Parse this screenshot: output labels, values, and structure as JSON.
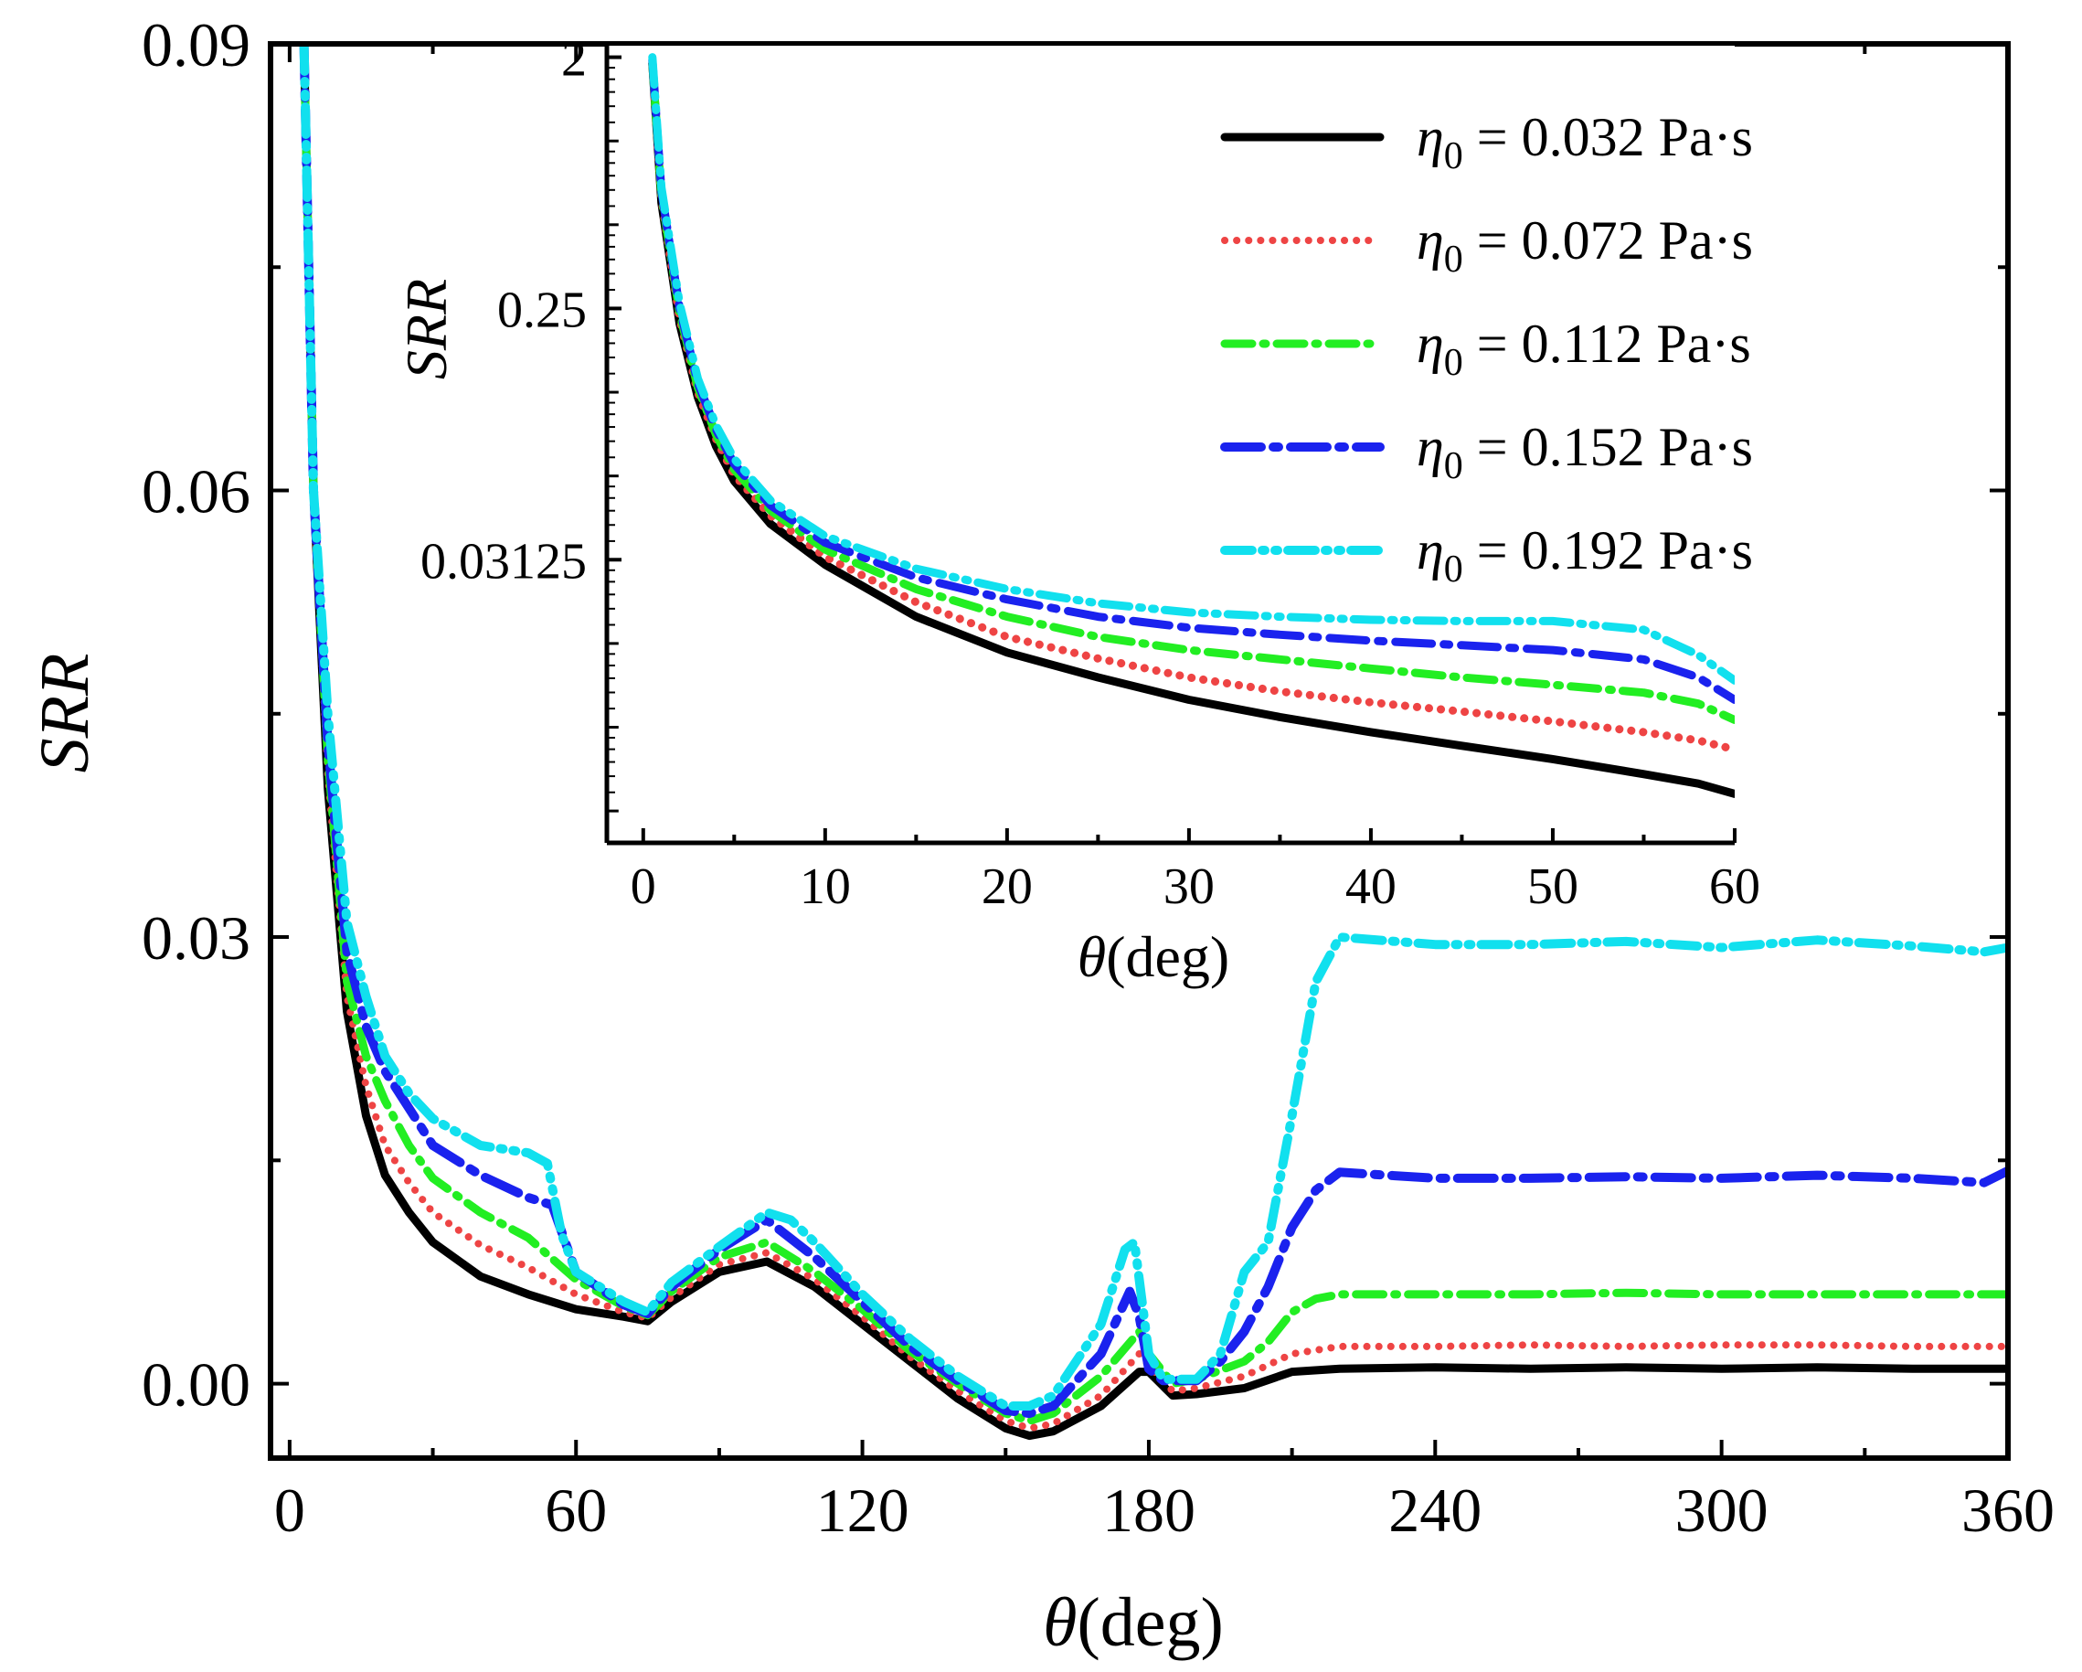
{
  "chart_data": [
    {
      "type": "line",
      "name": "main",
      "xlabel_symbol": "θ",
      "xlabel_unit": "(deg)",
      "ylabel": "SRR",
      "xlim": [
        -4,
        360
      ],
      "ylim": [
        -0.005,
        0.09
      ],
      "xticks": [
        0,
        60,
        120,
        180,
        240,
        300,
        360
      ],
      "xtick_labels": [
        "0",
        "60",
        "120",
        "180",
        "240",
        "300",
        "360"
      ],
      "yticks": [
        0.0,
        0.03,
        0.06,
        0.09
      ],
      "ytick_labels": [
        "0.00",
        "0.03",
        "0.06",
        "0.09"
      ],
      "legend": {
        "placement": "top-right",
        "entries": [
          {
            "symbol": "η",
            "sub": "0",
            "text": " = 0.032 Pa·s"
          },
          {
            "symbol": "η",
            "sub": "0",
            "text": " = 0.072 Pa·s"
          },
          {
            "symbol": "η",
            "sub": "0",
            "text": " = 0.112 Pa·s"
          },
          {
            "symbol": "η",
            "sub": "0",
            "text": " = 0.152 Pa·s"
          },
          {
            "symbol": "η",
            "sub": "0",
            "text": " = 0.192 Pa·s"
          }
        ]
      },
      "series": [
        {
          "name": "η0 = 0.032 Pa·s",
          "color": "#000000",
          "dash": "solid",
          "x": [
            3,
            5,
            8,
            12,
            16,
            20,
            25,
            30,
            40,
            50,
            60,
            70,
            75,
            80,
            90,
            100,
            110,
            120,
            130,
            140,
            150,
            155,
            160,
            170,
            178,
            180,
            185,
            190,
            200,
            210,
            220,
            240,
            260,
            280,
            300,
            320,
            340,
            360
          ],
          "y": [
            0.09,
            0.06,
            0.04,
            0.025,
            0.018,
            0.014,
            0.0115,
            0.0095,
            0.0072,
            0.006,
            0.005,
            0.0045,
            0.0042,
            0.0055,
            0.0075,
            0.0082,
            0.0065,
            0.004,
            0.0015,
            -0.001,
            -0.003,
            -0.0035,
            -0.0032,
            -0.0015,
            0.0008,
            0.0008,
            -0.0008,
            -0.0007,
            -0.0003,
            0.0008,
            0.001,
            0.0011,
            0.001,
            0.0011,
            0.001,
            0.0011,
            0.001,
            0.001
          ]
        },
        {
          "name": "η0 = 0.072 Pa·s",
          "color": "#ee4444",
          "dash": "dotted",
          "x": [
            3,
            5,
            8,
            12,
            16,
            20,
            25,
            30,
            40,
            50,
            60,
            70,
            75,
            80,
            90,
            100,
            110,
            120,
            130,
            140,
            150,
            155,
            160,
            170,
            178,
            180,
            185,
            190,
            200,
            210,
            220,
            240,
            260,
            280,
            300,
            320,
            340,
            360
          ],
          "y": [
            0.09,
            0.06,
            0.041,
            0.026,
            0.02,
            0.016,
            0.0135,
            0.0115,
            0.0093,
            0.0078,
            0.006,
            0.0048,
            0.0044,
            0.0058,
            0.008,
            0.0088,
            0.007,
            0.0045,
            0.0018,
            -0.0005,
            -0.0025,
            -0.003,
            -0.0027,
            -0.0008,
            0.002,
            0.0012,
            -0.0005,
            -0.0003,
            0.0005,
            0.002,
            0.0025,
            0.0025,
            0.0026,
            0.0025,
            0.0026,
            0.0026,
            0.0025,
            0.0025
          ]
        },
        {
          "name": "η0 = 0.112 Pa·s",
          "color": "#22ee22",
          "dash": "dashdot",
          "x": [
            3,
            5,
            8,
            12,
            16,
            20,
            25,
            30,
            40,
            50,
            60,
            70,
            75,
            80,
            90,
            100,
            110,
            120,
            130,
            140,
            150,
            155,
            160,
            170,
            178,
            180,
            185,
            190,
            200,
            205,
            210,
            215,
            220,
            240,
            260,
            280,
            300,
            320,
            340,
            360
          ],
          "y": [
            0.09,
            0.06,
            0.042,
            0.027,
            0.022,
            0.019,
            0.016,
            0.0138,
            0.0115,
            0.0098,
            0.007,
            0.0052,
            0.0046,
            0.0062,
            0.0085,
            0.0095,
            0.0075,
            0.005,
            0.0022,
            0.0,
            -0.002,
            -0.0025,
            -0.002,
            0.0005,
            0.0035,
            0.002,
            0.0,
            0.0003,
            0.0015,
            0.0028,
            0.0048,
            0.0057,
            0.006,
            0.006,
            0.006,
            0.0061,
            0.006,
            0.006,
            0.006,
            0.006
          ]
        },
        {
          "name": "η0 = 0.152 Pa·s",
          "color": "#1a22ee",
          "dash": "dashdotlong",
          "x": [
            3,
            5,
            8,
            12,
            16,
            20,
            25,
            30,
            40,
            50,
            55,
            60,
            70,
            75,
            80,
            90,
            100,
            110,
            120,
            130,
            140,
            150,
            155,
            160,
            170,
            176,
            178,
            180,
            183,
            190,
            195,
            200,
            205,
            210,
            215,
            220,
            240,
            260,
            280,
            300,
            320,
            340,
            355,
            360
          ],
          "y": [
            0.09,
            0.06,
            0.043,
            0.029,
            0.024,
            0.021,
            0.0185,
            0.016,
            0.014,
            0.0125,
            0.012,
            0.0075,
            0.0053,
            0.0047,
            0.0065,
            0.009,
            0.011,
            0.0085,
            0.0055,
            0.0025,
            0.0002,
            -0.0018,
            -0.002,
            -0.0015,
            0.002,
            0.0062,
            0.0045,
            0.001,
            0.0002,
            0.0002,
            0.0015,
            0.0035,
            0.0065,
            0.0105,
            0.013,
            0.0142,
            0.0138,
            0.0138,
            0.0139,
            0.0138,
            0.014,
            0.0138,
            0.0135,
            0.0143
          ]
        },
        {
          "name": "η0 = 0.192 Pa·s",
          "color": "#11e0ee",
          "dash": "dashdotdot",
          "x": [
            3,
            5,
            8,
            12,
            16,
            20,
            25,
            30,
            40,
            50,
            54,
            57,
            60,
            70,
            75,
            80,
            90,
            100,
            105,
            110,
            120,
            130,
            140,
            150,
            155,
            160,
            170,
            175,
            177,
            180,
            183,
            190,
            195,
            200,
            205,
            210,
            215,
            220,
            240,
            260,
            280,
            300,
            320,
            340,
            355,
            360
          ],
          "y": [
            0.09,
            0.06,
            0.045,
            0.031,
            0.026,
            0.022,
            0.0195,
            0.0178,
            0.016,
            0.0155,
            0.0148,
            0.01,
            0.0075,
            0.0055,
            0.0048,
            0.0068,
            0.0092,
            0.0115,
            0.011,
            0.0095,
            0.006,
            0.003,
            0.0005,
            -0.0015,
            -0.0015,
            -0.0008,
            0.004,
            0.009,
            0.0095,
            0.002,
            0.0003,
            0.0003,
            0.002,
            0.0075,
            0.0095,
            0.018,
            0.027,
            0.03,
            0.0295,
            0.0295,
            0.0297,
            0.0293,
            0.0298,
            0.0294,
            0.029,
            0.0293
          ]
        }
      ]
    },
    {
      "type": "line",
      "name": "inset",
      "yscale": "log2",
      "xlabel_symbol": "θ",
      "xlabel_unit": "(deg)",
      "ylabel": "SRR",
      "xlim": [
        -2,
        60
      ],
      "ylim": [
        0.003,
        2.2
      ],
      "xticks": [
        0,
        10,
        20,
        30,
        40,
        50,
        60
      ],
      "xtick_labels": [
        "0",
        "10",
        "20",
        "30",
        "40",
        "50",
        "60"
      ],
      "yticks": [
        2,
        0.25,
        0.03125
      ],
      "ytick_labels": [
        "2",
        "0.25",
        "0.03125"
      ],
      "series": [
        {
          "name": "η0 = 0.032 Pa·s",
          "color": "#000000",
          "dash": "solid",
          "x": [
            0.5,
            1,
            2,
            3,
            4,
            5,
            7,
            10,
            15,
            20,
            25,
            30,
            35,
            40,
            45,
            50,
            55,
            58,
            60
          ],
          "y": [
            1.9,
            0.6,
            0.22,
            0.12,
            0.08,
            0.06,
            0.042,
            0.03,
            0.0195,
            0.0145,
            0.0118,
            0.0098,
            0.0085,
            0.0075,
            0.0067,
            0.006,
            0.0053,
            0.0049,
            0.0045
          ]
        },
        {
          "name": "η0 = 0.072 Pa·s",
          "color": "#ee4444",
          "dash": "dotted",
          "x": [
            0.5,
            1,
            2,
            3,
            4,
            5,
            7,
            10,
            15,
            20,
            25,
            30,
            35,
            40,
            45,
            50,
            55,
            58,
            60
          ],
          "y": [
            1.9,
            0.62,
            0.23,
            0.125,
            0.085,
            0.063,
            0.045,
            0.032,
            0.022,
            0.0165,
            0.0138,
            0.0118,
            0.0105,
            0.0096,
            0.0089,
            0.0082,
            0.0075,
            0.007,
            0.0065
          ]
        },
        {
          "name": "η0 = 0.112 Pa·s",
          "color": "#22ee22",
          "dash": "dashdot",
          "x": [
            0.5,
            1,
            2,
            3,
            4,
            5,
            7,
            10,
            15,
            20,
            25,
            30,
            35,
            40,
            45,
            50,
            55,
            58,
            60
          ],
          "y": [
            1.9,
            0.64,
            0.24,
            0.13,
            0.088,
            0.066,
            0.047,
            0.034,
            0.0245,
            0.0195,
            0.0165,
            0.0148,
            0.0137,
            0.0127,
            0.0118,
            0.0111,
            0.0104,
            0.0095,
            0.0083
          ]
        },
        {
          "name": "η0 = 0.152 Pa·s",
          "color": "#1a22ee",
          "dash": "dashdotlong",
          "x": [
            0.5,
            1,
            2,
            3,
            4,
            5,
            7,
            10,
            15,
            20,
            25,
            30,
            35,
            40,
            45,
            50,
            55,
            58,
            60
          ],
          "y": [
            1.95,
            0.66,
            0.25,
            0.135,
            0.092,
            0.069,
            0.049,
            0.036,
            0.027,
            0.0225,
            0.0195,
            0.0178,
            0.0168,
            0.016,
            0.0154,
            0.0148,
            0.0137,
            0.0118,
            0.0098
          ]
        },
        {
          "name": "η0 = 0.192 Pa·s",
          "color": "#11e0ee",
          "dash": "dashdotdot",
          "x": [
            0.5,
            1,
            2,
            3,
            4,
            5,
            7,
            10,
            15,
            20,
            25,
            30,
            35,
            40,
            45,
            50,
            55,
            58,
            60
          ],
          "y": [
            2.0,
            0.68,
            0.26,
            0.14,
            0.095,
            0.072,
            0.051,
            0.038,
            0.029,
            0.0245,
            0.0218,
            0.0202,
            0.0195,
            0.019,
            0.0188,
            0.0188,
            0.0175,
            0.0142,
            0.0115
          ]
        }
      ]
    }
  ]
}
